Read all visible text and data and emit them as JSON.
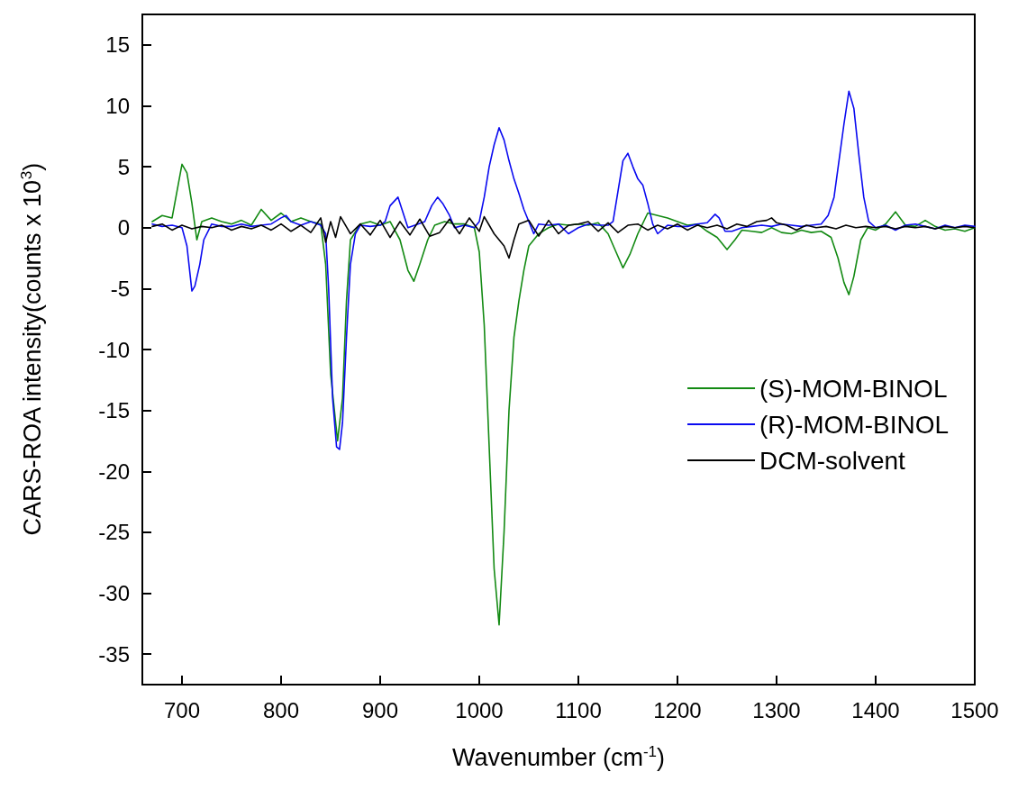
{
  "chart_data": {
    "type": "line",
    "xlabel": "Wavenumber (cm$^{-1}$)",
    "ylabel": "CARS-ROA intensity(counts x 10$^{3}$)",
    "xlim": [
      660,
      1500
    ],
    "xticks": [
      700,
      800,
      900,
      1000,
      1100,
      1200,
      1300,
      1400,
      1500
    ],
    "ylim": [
      -37.5,
      17.5
    ],
    "yticks": [
      -35,
      -30,
      -25,
      -20,
      -15,
      -10,
      -5,
      0,
      5,
      10,
      15
    ],
    "grid": false,
    "legend": "right",
    "marker": "none",
    "line_style": "solid",
    "series": [
      {
        "name": "(S)-MOM-BINOL",
        "color": "#138a13",
        "x": [
          670,
          680,
          690,
          695,
          700,
          705,
          710,
          715,
          720,
          730,
          740,
          750,
          760,
          770,
          780,
          790,
          800,
          810,
          820,
          830,
          840,
          845,
          850,
          857,
          862,
          866,
          870,
          880,
          890,
          900,
          910,
          920,
          928,
          934,
          940,
          948,
          955,
          965,
          975,
          985,
          995,
          1000,
          1005,
          1010,
          1015,
          1020,
          1025,
          1030,
          1035,
          1040,
          1045,
          1050,
          1060,
          1070,
          1080,
          1090,
          1100,
          1110,
          1120,
          1130,
          1138,
          1145,
          1152,
          1160,
          1170,
          1180,
          1190,
          1200,
          1210,
          1220,
          1230,
          1240,
          1250,
          1258,
          1265,
          1275,
          1285,
          1295,
          1305,
          1315,
          1325,
          1335,
          1345,
          1355,
          1362,
          1368,
          1373,
          1378,
          1385,
          1392,
          1400,
          1410,
          1420,
          1430,
          1440,
          1450,
          1460,
          1470,
          1480,
          1490,
          1500
        ],
        "values": [
          0.5,
          1.0,
          0.8,
          3,
          5.2,
          4.5,
          2,
          -1.0,
          0.5,
          0.8,
          0.5,
          0.3,
          0.6,
          0.2,
          1.5,
          0.6,
          1.2,
          0.5,
          0.8,
          0.5,
          0.3,
          -3,
          -12,
          -17.5,
          -14,
          -6,
          -1,
          0.3,
          0.5,
          0.2,
          0.5,
          -1,
          -3.5,
          -4.4,
          -3,
          -1,
          0.2,
          0.5,
          0.3,
          0.3,
          0,
          -2,
          -8,
          -18,
          -28,
          -32.6,
          -25,
          -15,
          -9,
          -6,
          -3.5,
          -1.5,
          -0.5,
          0,
          0.3,
          0.2,
          0.3,
          0.2,
          0.4,
          -0.5,
          -2,
          -3.3,
          -2.2,
          -0.5,
          1.2,
          1.0,
          0.8,
          0.5,
          0.2,
          0.3,
          -0.3,
          -0.8,
          -1.8,
          -1,
          -0.2,
          -0.3,
          -0.4,
          0,
          -0.4,
          -0.5,
          -0.2,
          -0.4,
          -0.3,
          -0.8,
          -2.5,
          -4.5,
          -5.5,
          -4,
          -1,
          0,
          -0.2,
          0.3,
          1.3,
          0.2,
          0.1,
          0.6,
          0.1,
          -0.2,
          -0.1,
          -0.3,
          0
        ]
      },
      {
        "name": "(R)-MOM-BINOL",
        "color": "#0a0af0",
        "x": [
          670,
          680,
          690,
          700,
          705,
          710,
          713,
          718,
          722,
          730,
          740,
          750,
          760,
          770,
          780,
          790,
          800,
          805,
          810,
          820,
          830,
          840,
          845,
          848,
          852,
          856,
          859,
          862,
          866,
          870,
          875,
          880,
          890,
          900,
          905,
          910,
          918,
          922,
          928,
          935,
          945,
          952,
          958,
          963,
          970,
          975,
          985,
          995,
          1000,
          1005,
          1010,
          1015,
          1020,
          1025,
          1030,
          1035,
          1040,
          1045,
          1050,
          1055,
          1060,
          1070,
          1080,
          1090,
          1100,
          1110,
          1120,
          1130,
          1135,
          1140,
          1145,
          1150,
          1155,
          1160,
          1165,
          1170,
          1175,
          1180,
          1190,
          1200,
          1210,
          1220,
          1230,
          1238,
          1242,
          1248,
          1255,
          1265,
          1275,
          1285,
          1295,
          1305,
          1315,
          1325,
          1335,
          1345,
          1352,
          1358,
          1363,
          1368,
          1373,
          1378,
          1383,
          1388,
          1393,
          1400,
          1410,
          1420,
          1430,
          1440,
          1450,
          1460,
          1470,
          1480,
          1490,
          1500
        ],
        "values": [
          0.3,
          0.1,
          0.2,
          0,
          -1.5,
          -5.2,
          -4.8,
          -3,
          -1,
          0.3,
          0.1,
          0.1,
          0.3,
          0.1,
          0.2,
          0.3,
          0.8,
          1.0,
          0.5,
          0.2,
          0.5,
          0.2,
          -0.5,
          -5,
          -14,
          -18,
          -18.2,
          -16,
          -9,
          -3,
          -0.5,
          0.2,
          0.1,
          0.2,
          0.5,
          1.8,
          2.5,
          1.5,
          0,
          0.2,
          0.5,
          1.8,
          2.5,
          2.0,
          1.0,
          0,
          0.2,
          0,
          0.5,
          2.5,
          5,
          6.8,
          8.2,
          7.2,
          5.5,
          4,
          2.8,
          1.5,
          0.5,
          -0.5,
          0.3,
          0.2,
          0.3,
          -0.5,
          0,
          0.3,
          0.2,
          0.2,
          0.5,
          3,
          5.5,
          6.1,
          5,
          4,
          3.5,
          2,
          0.3,
          -0.5,
          0.2,
          0.1,
          0.1,
          0.3,
          0.4,
          1.1,
          0.8,
          -0.3,
          -0.3,
          0,
          0.1,
          0.2,
          0.1,
          0.3,
          0.2,
          0.1,
          0.2,
          0.3,
          1,
          2.5,
          5.5,
          8.5,
          11.2,
          9.8,
          6,
          2.5,
          0.5,
          0,
          0.2,
          -0.2,
          0.2,
          0.3,
          0.1,
          -0.1,
          0.2,
          0,
          0.2,
          0.1
        ]
      },
      {
        "name": "DCM-solvent",
        "color": "#000000",
        "x": [
          670,
          680,
          690,
          700,
          710,
          720,
          730,
          740,
          750,
          760,
          770,
          780,
          790,
          800,
          810,
          820,
          830,
          840,
          845,
          850,
          855,
          860,
          870,
          880,
          890,
          900,
          910,
          920,
          930,
          940,
          950,
          960,
          970,
          980,
          990,
          1000,
          1005,
          1010,
          1015,
          1020,
          1025,
          1030,
          1035,
          1040,
          1050,
          1060,
          1070,
          1080,
          1090,
          1100,
          1110,
          1120,
          1130,
          1140,
          1150,
          1160,
          1170,
          1180,
          1190,
          1200,
          1210,
          1220,
          1230,
          1240,
          1250,
          1260,
          1270,
          1280,
          1290,
          1295,
          1300,
          1310,
          1320,
          1330,
          1340,
          1350,
          1360,
          1370,
          1380,
          1390,
          1400,
          1410,
          1420,
          1430,
          1440,
          1450,
          1460,
          1470,
          1480,
          1490,
          1500
        ],
        "values": [
          0.1,
          0.3,
          -0.2,
          0.2,
          -0.1,
          0.1,
          0,
          0.2,
          -0.2,
          0.1,
          -0.1,
          0.2,
          -0.2,
          0.3,
          -0.3,
          0.2,
          -0.4,
          0.8,
          -1.2,
          0.5,
          -0.8,
          0.9,
          -0.5,
          0.3,
          -0.6,
          0.6,
          -0.8,
          0.5,
          -0.6,
          0.7,
          -0.7,
          -0.4,
          0.7,
          -0.5,
          0.8,
          -0.3,
          0.9,
          0.2,
          -0.5,
          -1,
          -1.5,
          -2.5,
          -1,
          0.3,
          0.6,
          -0.7,
          0.6,
          -0.5,
          0.2,
          0.3,
          0.5,
          -0.3,
          0.4,
          -0.4,
          0.2,
          0.3,
          -0.2,
          0.2,
          -0.1,
          0.3,
          -0.2,
          0.2,
          0,
          0.2,
          -0.1,
          0.3,
          0.1,
          0.5,
          0.6,
          0.8,
          0.4,
          0.2,
          -0.2,
          0.2,
          0,
          0.1,
          -0.1,
          0.2,
          0,
          0.1,
          0,
          0.1,
          -0.1,
          0.1,
          0,
          0.1,
          -0.1,
          0.1,
          0,
          0.1,
          0
        ]
      }
    ]
  }
}
